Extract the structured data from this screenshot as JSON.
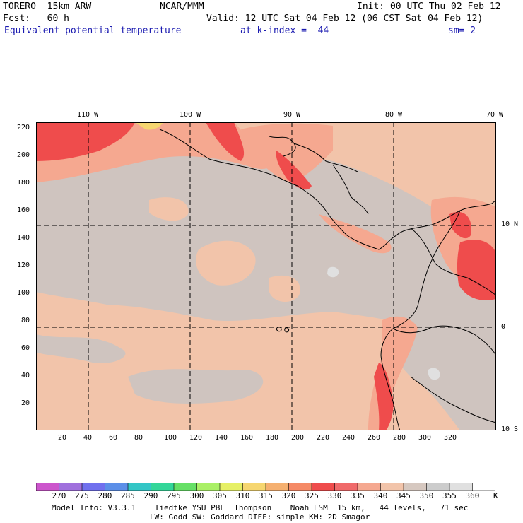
{
  "header": {
    "model": "TORERO  15km ARW",
    "org": "NCAR/MMM",
    "init": "Init: 00 UTC Thu 02 Feb 12",
    "fcst": "Fcst:   60 h",
    "valid": "Valid: 12 UTC Sat 04 Feb 12 (06 CST Sat 04 Feb 12)",
    "field": "Equivalent potential temperature",
    "level": "at k-index =  44",
    "smoothing": "sm= 2"
  },
  "map": {
    "top_lon_labels": [
      "110 W",
      "100 W",
      "90 W",
      "80 W",
      "70 W"
    ],
    "right_lat_labels": [
      "10 N",
      "0",
      "10 S"
    ],
    "left_grid_labels": [
      "220",
      "200",
      "180",
      "160",
      "140",
      "120",
      "100",
      "80",
      "60",
      "40",
      "20"
    ],
    "bottom_grid_labels": [
      "20",
      "40",
      "60",
      "80",
      "100",
      "120",
      "140",
      "160",
      "180",
      "200",
      "220",
      "240",
      "260",
      "280",
      "300",
      "320"
    ],
    "background_color": "#f2c4aa",
    "land_outline_color": "#000000"
  },
  "colorbar": {
    "unit": "K",
    "levels": [
      "270",
      "275",
      "280",
      "285",
      "290",
      "295",
      "300",
      "305",
      "310",
      "315",
      "320",
      "325",
      "330",
      "335",
      "340",
      "345",
      "350",
      "355",
      "360"
    ],
    "colors": [
      "#cc55cc",
      "#a070dd",
      "#7070ee",
      "#5c8fe8",
      "#33c6c6",
      "#33d699",
      "#66e066",
      "#aaf066",
      "#e6f066",
      "#f6d670",
      "#f5b070",
      "#f58a66",
      "#ef4c4c",
      "#f06a6a",
      "#f5a890",
      "#f2c4aa",
      "#d6c8c0",
      "#cccccc",
      "#e0e0e0",
      "#ffffff"
    ]
  },
  "footer": {
    "line1": "Model Info: V3.3.1    Tiedtke YSU PBL  Thompson    Noah LSM  15 km,   44 levels,   71 sec",
    "line2": "LW: Godd SW: Goddard DIFF: simple KM: 2D Smagor"
  }
}
